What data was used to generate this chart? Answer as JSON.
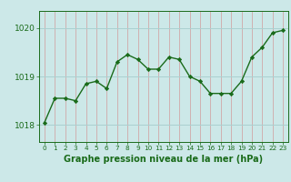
{
  "x": [
    0,
    1,
    2,
    3,
    4,
    5,
    6,
    7,
    8,
    9,
    10,
    11,
    12,
    13,
    14,
    15,
    16,
    17,
    18,
    19,
    20,
    21,
    22,
    23
  ],
  "y": [
    1018.05,
    1018.55,
    1018.55,
    1018.5,
    1018.85,
    1018.9,
    1018.75,
    1019.3,
    1019.45,
    1019.35,
    1019.15,
    1019.15,
    1019.4,
    1019.35,
    1019.0,
    1018.9,
    1018.65,
    1018.65,
    1018.65,
    1018.9,
    1019.4,
    1019.6,
    1019.9,
    1019.95
  ],
  "line_color": "#1a6b1a",
  "marker_color": "#1a6b1a",
  "bg_color": "#cce8e8",
  "grid_color_h": "#aad0d0",
  "grid_color_v": "#d0a8a8",
  "xlabel": "Graphe pression niveau de la mer (hPa)",
  "xlabel_color": "#1a6b1a",
  "xlabel_fontsize": 7.0,
  "ylabel_ticks": [
    1018,
    1019,
    1020
  ],
  "ylim": [
    1017.65,
    1020.35
  ],
  "xlim": [
    -0.5,
    23.5
  ],
  "tick_color": "#1a6b1a",
  "axis_color": "#1a6b1a",
  "xtick_fontsize": 5.2,
  "ytick_fontsize": 6.5
}
